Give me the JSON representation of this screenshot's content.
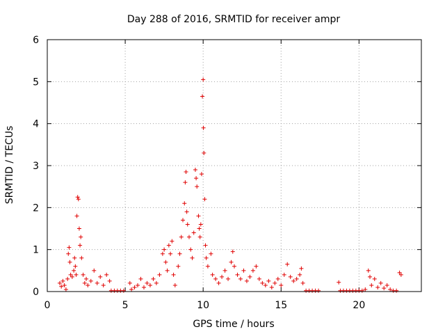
{
  "chart_data": {
    "type": "scatter",
    "title": "Day 288 of 2016, SRMTID for receiver ampr",
    "xlabel": "GPS time / hours",
    "ylabel": "SRMTID / TECUs",
    "xlim": [
      0,
      24
    ],
    "ylim": [
      0,
      6
    ],
    "xticks": [
      0,
      5,
      10,
      15,
      20
    ],
    "yticks": [
      0,
      1,
      2,
      3,
      4,
      5,
      6
    ],
    "grid": true,
    "marker": "+",
    "color": "#e00000",
    "series": [
      {
        "name": "SRMTID",
        "points": [
          [
            0.8,
            0.2
          ],
          [
            0.9,
            0.12
          ],
          [
            1.0,
            0.25
          ],
          [
            1.1,
            0.15
          ],
          [
            1.2,
            0.05
          ],
          [
            1.3,
            0.3
          ],
          [
            1.35,
            0.9
          ],
          [
            1.4,
            1.05
          ],
          [
            1.45,
            0.7
          ],
          [
            1.5,
            0.4
          ],
          [
            1.6,
            0.35
          ],
          [
            1.7,
            0.5
          ],
          [
            1.75,
            0.8
          ],
          [
            1.8,
            0.6
          ],
          [
            1.85,
            0.4
          ],
          [
            1.9,
            1.8
          ],
          [
            1.95,
            2.25
          ],
          [
            2.0,
            2.2
          ],
          [
            2.05,
            1.5
          ],
          [
            2.1,
            1.1
          ],
          [
            2.15,
            1.3
          ],
          [
            2.2,
            0.8
          ],
          [
            2.3,
            0.4
          ],
          [
            2.4,
            0.2
          ],
          [
            2.5,
            0.3
          ],
          [
            2.6,
            0.15
          ],
          [
            2.8,
            0.25
          ],
          [
            3.0,
            0.5
          ],
          [
            3.2,
            0.2
          ],
          [
            3.4,
            0.35
          ],
          [
            3.6,
            0.15
          ],
          [
            3.8,
            0.4
          ],
          [
            4.0,
            0.25
          ],
          [
            4.1,
            0.02
          ],
          [
            4.3,
            0.02
          ],
          [
            4.5,
            0.02
          ],
          [
            4.7,
            0.02
          ],
          [
            4.9,
            0.02
          ],
          [
            5.3,
            0.2
          ],
          [
            5.4,
            0.05
          ],
          [
            5.6,
            0.1
          ],
          [
            5.8,
            0.15
          ],
          [
            6.0,
            0.3
          ],
          [
            6.2,
            0.1
          ],
          [
            6.4,
            0.2
          ],
          [
            6.6,
            0.15
          ],
          [
            6.8,
            0.3
          ],
          [
            7.0,
            0.2
          ],
          [
            7.2,
            0.4
          ],
          [
            7.4,
            0.9
          ],
          [
            7.5,
            1.0
          ],
          [
            7.6,
            0.7
          ],
          [
            7.7,
            0.5
          ],
          [
            7.8,
            1.1
          ],
          [
            7.9,
            0.9
          ],
          [
            8.0,
            1.2
          ],
          [
            8.1,
            0.4
          ],
          [
            8.2,
            0.15
          ],
          [
            8.4,
            0.6
          ],
          [
            8.5,
            0.9
          ],
          [
            8.6,
            1.3
          ],
          [
            8.7,
            1.7
          ],
          [
            8.8,
            2.1
          ],
          [
            8.85,
            2.6
          ],
          [
            8.9,
            2.85
          ],
          [
            8.95,
            1.9
          ],
          [
            9.0,
            1.6
          ],
          [
            9.1,
            1.3
          ],
          [
            9.2,
            1.0
          ],
          [
            9.3,
            0.8
          ],
          [
            9.4,
            1.4
          ],
          [
            9.5,
            2.9
          ],
          [
            9.55,
            2.7
          ],
          [
            9.6,
            2.5
          ],
          [
            9.7,
            1.8
          ],
          [
            9.75,
            1.5
          ],
          [
            9.8,
            1.3
          ],
          [
            9.85,
            1.6
          ],
          [
            9.9,
            2.8
          ],
          [
            9.95,
            4.65
          ],
          [
            10.0,
            5.05
          ],
          [
            10.02,
            3.9
          ],
          [
            10.05,
            3.3
          ],
          [
            10.1,
            2.2
          ],
          [
            10.15,
            1.1
          ],
          [
            10.2,
            0.8
          ],
          [
            10.3,
            0.6
          ],
          [
            10.5,
            0.9
          ],
          [
            10.6,
            0.4
          ],
          [
            10.8,
            0.3
          ],
          [
            11.0,
            0.2
          ],
          [
            11.2,
            0.35
          ],
          [
            11.4,
            0.5
          ],
          [
            11.6,
            0.3
          ],
          [
            11.8,
            0.7
          ],
          [
            11.9,
            0.95
          ],
          [
            12.0,
            0.6
          ],
          [
            12.2,
            0.4
          ],
          [
            12.4,
            0.3
          ],
          [
            12.6,
            0.5
          ],
          [
            12.8,
            0.25
          ],
          [
            13.0,
            0.35
          ],
          [
            13.2,
            0.5
          ],
          [
            13.4,
            0.6
          ],
          [
            13.6,
            0.3
          ],
          [
            13.8,
            0.2
          ],
          [
            14.0,
            0.15
          ],
          [
            14.2,
            0.25
          ],
          [
            14.4,
            0.1
          ],
          [
            14.6,
            0.2
          ],
          [
            14.8,
            0.3
          ],
          [
            15.0,
            0.15
          ],
          [
            15.2,
            0.4
          ],
          [
            15.4,
            0.65
          ],
          [
            15.6,
            0.35
          ],
          [
            15.8,
            0.25
          ],
          [
            16.0,
            0.3
          ],
          [
            16.2,
            0.4
          ],
          [
            16.3,
            0.55
          ],
          [
            16.4,
            0.2
          ],
          [
            16.6,
            0.02
          ],
          [
            16.8,
            0.02
          ],
          [
            17.0,
            0.02
          ],
          [
            17.2,
            0.02
          ],
          [
            17.4,
            0.02
          ],
          [
            18.7,
            0.22
          ],
          [
            18.8,
            0.02
          ],
          [
            19.0,
            0.02
          ],
          [
            19.2,
            0.02
          ],
          [
            19.4,
            0.02
          ],
          [
            19.6,
            0.02
          ],
          [
            19.8,
            0.02
          ],
          [
            20.0,
            0.02
          ],
          [
            20.2,
            0.02
          ],
          [
            20.4,
            0.05
          ],
          [
            20.6,
            0.5
          ],
          [
            20.7,
            0.35
          ],
          [
            20.8,
            0.15
          ],
          [
            21.0,
            0.3
          ],
          [
            21.2,
            0.1
          ],
          [
            21.4,
            0.2
          ],
          [
            21.6,
            0.08
          ],
          [
            21.8,
            0.15
          ],
          [
            22.0,
            0.05
          ],
          [
            22.2,
            0.02
          ],
          [
            22.4,
            0.02
          ],
          [
            22.6,
            0.45
          ],
          [
            22.7,
            0.4
          ]
        ]
      }
    ]
  }
}
